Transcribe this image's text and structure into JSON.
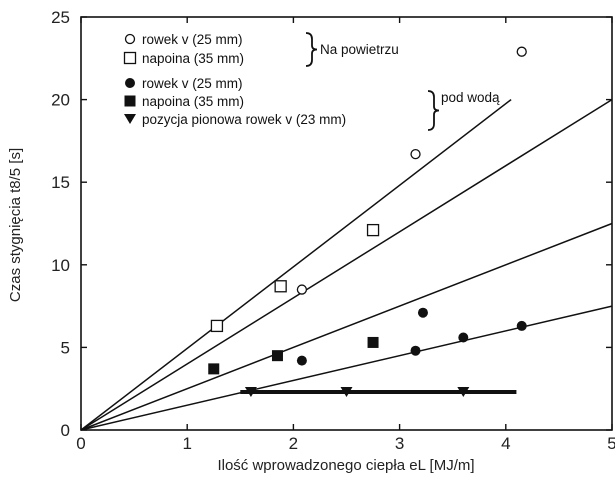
{
  "chart_data": {
    "type": "scatter",
    "title": "",
    "xlabel": "Ilość wprowadzonego ciepła eL [MJ/m]",
    "ylabel": "Czas stygnięcia t8/5 [s]",
    "xlim": [
      0,
      5
    ],
    "ylim": [
      0,
      25
    ],
    "xticks": [
      0,
      1,
      2,
      3,
      4,
      5
    ],
    "yticks": [
      0,
      5,
      10,
      15,
      20,
      25
    ],
    "grid": false,
    "legend_position": "top-left",
    "groups": [
      {
        "label": "Na powietrzu"
      },
      {
        "label": "pod wodą"
      }
    ],
    "series": [
      {
        "name": "rowek v (25 mm)",
        "group": 0,
        "marker": "circle-open",
        "points": [
          [
            2.08,
            8.5
          ],
          [
            3.15,
            16.7
          ],
          [
            4.15,
            22.9
          ]
        ]
      },
      {
        "name": "napoina (35 mm)",
        "group": 0,
        "marker": "square-open",
        "points": [
          [
            1.28,
            6.3
          ],
          [
            1.88,
            8.7
          ],
          [
            2.75,
            12.1
          ]
        ]
      },
      {
        "name": "rowek v (25 mm)",
        "group": 1,
        "marker": "circle-filled",
        "points": [
          [
            2.08,
            4.2
          ],
          [
            3.15,
            4.8
          ],
          [
            3.22,
            7.1
          ],
          [
            3.6,
            5.6
          ],
          [
            4.15,
            6.3
          ]
        ]
      },
      {
        "name": "napoina (35 mm)",
        "group": 1,
        "marker": "square-filled",
        "points": [
          [
            1.25,
            3.7
          ],
          [
            1.85,
            4.5
          ],
          [
            2.75,
            5.3
          ]
        ]
      },
      {
        "name": "pozycja pionowa rowek v (23 mm)",
        "group": 1,
        "marker": "triangle-down-filled",
        "points": [
          [
            1.6,
            2.3
          ],
          [
            2.5,
            2.3
          ],
          [
            3.6,
            2.3
          ]
        ]
      }
    ],
    "trend_lines": [
      {
        "from": [
          0,
          0
        ],
        "to": [
          4.05,
          20
        ]
      },
      {
        "from": [
          0,
          0
        ],
        "to": [
          5,
          20
        ]
      },
      {
        "from": [
          0,
          0
        ],
        "to": [
          5,
          12.5
        ]
      },
      {
        "from": [
          0,
          0
        ],
        "to": [
          5,
          7.5
        ]
      },
      {
        "from": [
          1.5,
          2.3
        ],
        "to": [
          4.1,
          2.3
        ],
        "thick": true
      }
    ],
    "colors": {
      "ink": "#111111",
      "background": "#ffffff"
    }
  }
}
